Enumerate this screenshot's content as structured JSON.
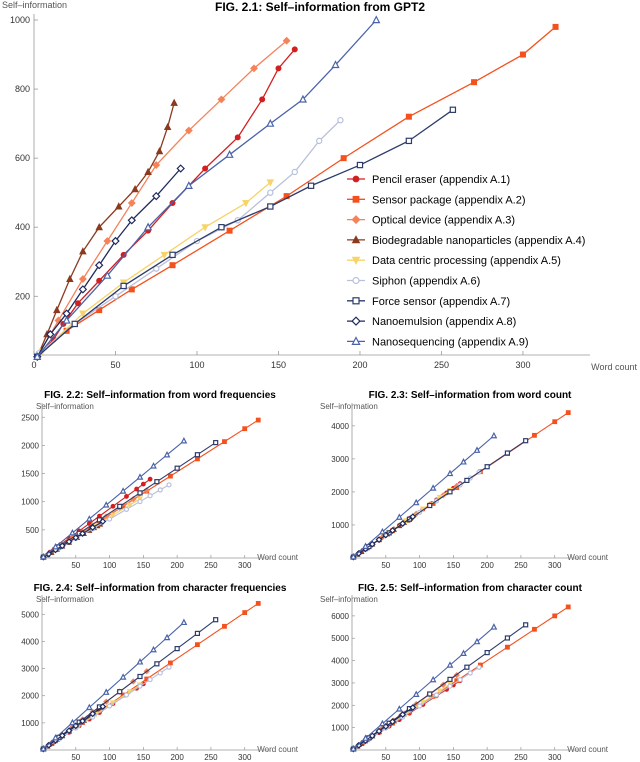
{
  "figure": {
    "colors": {
      "pencil": "#d31f1f",
      "sensor": "#f4511e",
      "optical": "#f5835a",
      "biodeg": "#8b3a1e",
      "datacentric": "#f7d36a",
      "siphon": "#b8c0db",
      "force": "#2e3c6b",
      "nanoemulsion": "#1e2a5c",
      "nanoseq": "#4a63a8"
    }
  },
  "chart_data": [
    {
      "id": "main",
      "type": "line",
      "title": "FIG. 2.1: Self–information from GPT2",
      "xlabel": "Word count",
      "ylabel": "Self–information",
      "xlim": [
        0,
        335
      ],
      "ylim": [
        30,
        1000
      ],
      "xticks": [
        0,
        50,
        100,
        150,
        200,
        250,
        300
      ],
      "yticks": [
        200,
        400,
        600,
        800,
        1000
      ],
      "legend_position": "center-right",
      "series": [
        {
          "name": "Pencil eraser (appendix A.1)",
          "key": "pencil",
          "marker": "circle",
          "x": [
            2,
            12,
            18,
            27,
            40,
            55,
            70,
            85,
            105,
            125,
            140,
            150,
            160
          ],
          "y": [
            25,
            75,
            120,
            180,
            245,
            320,
            390,
            470,
            570,
            660,
            770,
            860,
            915
          ]
        },
        {
          "name": "Sensor package (appendix A.2)",
          "key": "sensor",
          "marker": "square",
          "x": [
            2,
            20,
            40,
            60,
            85,
            120,
            155,
            190,
            230,
            270,
            300,
            320
          ],
          "y": [
            25,
            100,
            160,
            220,
            290,
            390,
            490,
            600,
            720,
            820,
            900,
            980
          ]
        },
        {
          "name": "Optical device (appendix A.3)",
          "key": "optical",
          "marker": "diamond",
          "x": [
            2,
            15,
            30,
            45,
            60,
            75,
            95,
            115,
            135,
            155
          ],
          "y": [
            25,
            130,
            250,
            360,
            470,
            580,
            680,
            770,
            860,
            940
          ]
        },
        {
          "name": "Biodegradable nanoparticles (appendix A.4)",
          "key": "biodeg",
          "marker": "triangle",
          "x": [
            2,
            8,
            14,
            22,
            30,
            40,
            52,
            62,
            70,
            77,
            82,
            86
          ],
          "y": [
            25,
            90,
            160,
            250,
            330,
            400,
            460,
            510,
            560,
            620,
            690,
            760
          ]
        },
        {
          "name": "Data centric processing (appendix A.5)",
          "key": "datacentric",
          "marker": "triangle-down",
          "x": [
            5,
            30,
            55,
            80,
            105,
            130,
            145
          ],
          "y": [
            40,
            150,
            240,
            320,
            400,
            470,
            530
          ]
        },
        {
          "name": "Siphon (appendix A.6)",
          "key": "siphon",
          "marker": "circle-open",
          "x": [
            3,
            25,
            50,
            75,
            100,
            125,
            145,
            160,
            175,
            188
          ],
          "y": [
            35,
            120,
            200,
            280,
            360,
            420,
            500,
            560,
            650,
            710
          ]
        },
        {
          "name": "Force sensor (appendix A.7)",
          "key": "force",
          "marker": "square-open",
          "x": [
            2,
            25,
            55,
            85,
            115,
            145,
            170,
            200,
            230,
            257
          ],
          "y": [
            25,
            120,
            230,
            320,
            400,
            460,
            520,
            580,
            650,
            740
          ]
        },
        {
          "name": "Nanoemulsion (appendix A.8)",
          "key": "nanoemulsion",
          "marker": "diamond-open",
          "x": [
            2,
            10,
            20,
            30,
            40,
            50,
            60,
            75,
            90
          ],
          "y": [
            25,
            90,
            150,
            220,
            290,
            360,
            420,
            490,
            570
          ]
        },
        {
          "name": "Nanosequencing (appendix A.9)",
          "key": "nanoseq",
          "marker": "triangle-open",
          "x": [
            2,
            20,
            45,
            70,
            95,
            120,
            145,
            165,
            185,
            210
          ],
          "y": [
            25,
            130,
            260,
            400,
            520,
            610,
            700,
            770,
            870,
            1000
          ]
        }
      ]
    },
    {
      "id": "f22",
      "type": "line",
      "title": "FIG. 2.2: Self–information from word frequencies",
      "xlabel": "Word count",
      "ylabel": "Self–information",
      "xlim": [
        0,
        330
      ],
      "ylim": [
        0,
        2700
      ],
      "xticks": [
        50,
        100,
        150,
        200,
        250,
        300
      ],
      "yticks": [
        500,
        1000,
        1500,
        2000,
        2500
      ],
      "series_end_y": {
        "pencil": 1400,
        "sensor": 2450,
        "optical": 1200,
        "biodeg": 600,
        "datacentric": 1050,
        "siphon": 1300,
        "force": 2050,
        "nanoemulsion": 650,
        "nanoseq": 2080
      }
    },
    {
      "id": "f23",
      "type": "line",
      "title": "FIG. 2.3: Self–information from word count",
      "xlabel": "Word count",
      "ylabel": "Self–information",
      "xlim": [
        0,
        330
      ],
      "ylim": [
        0,
        4600
      ],
      "xticks": [
        50,
        100,
        150,
        200,
        250,
        300
      ],
      "yticks": [
        1000,
        2000,
        3000,
        4000
      ],
      "series_end_y": {
        "pencil": 2250,
        "sensor": 4400,
        "optical": 2180,
        "biodeg": 1200,
        "datacentric": 2050,
        "siphon": 2600,
        "force": 3550,
        "nanoemulsion": 1250,
        "nanoseq": 3700
      }
    },
    {
      "id": "f24",
      "type": "line",
      "title": "FIG. 2.4: Self–information from character frequencies",
      "xlabel": "Word count",
      "ylabel": "Self–information",
      "xlim": [
        0,
        330
      ],
      "ylim": [
        0,
        5600
      ],
      "xticks": [
        50,
        100,
        150,
        200,
        250,
        300
      ],
      "yticks": [
        1000,
        2000,
        3000,
        4000,
        5000
      ],
      "series_end_y": {
        "pencil": 2600,
        "sensor": 5400,
        "optical": 2900,
        "biodeg": 1500,
        "datacentric": 2400,
        "siphon": 3050,
        "force": 4800,
        "nanoemulsion": 1600,
        "nanoseq": 4700
      }
    },
    {
      "id": "f25",
      "type": "line",
      "title": "FIG. 2.5: Self–information from character count",
      "xlabel": "Word count",
      "ylabel": "Self–information",
      "xlim": [
        0,
        330
      ],
      "ylim": [
        0,
        6800
      ],
      "xticks": [
        50,
        100,
        150,
        200,
        250,
        300
      ],
      "yticks": [
        1000,
        2000,
        3000,
        4000,
        5000,
        6000
      ],
      "series_end_y": {
        "pencil": 3100,
        "sensor": 6400,
        "optical": 3350,
        "biodeg": 1800,
        "datacentric": 2950,
        "siphon": 3700,
        "force": 5600,
        "nanoemulsion": 1900,
        "nanoseq": 5500
      }
    }
  ]
}
